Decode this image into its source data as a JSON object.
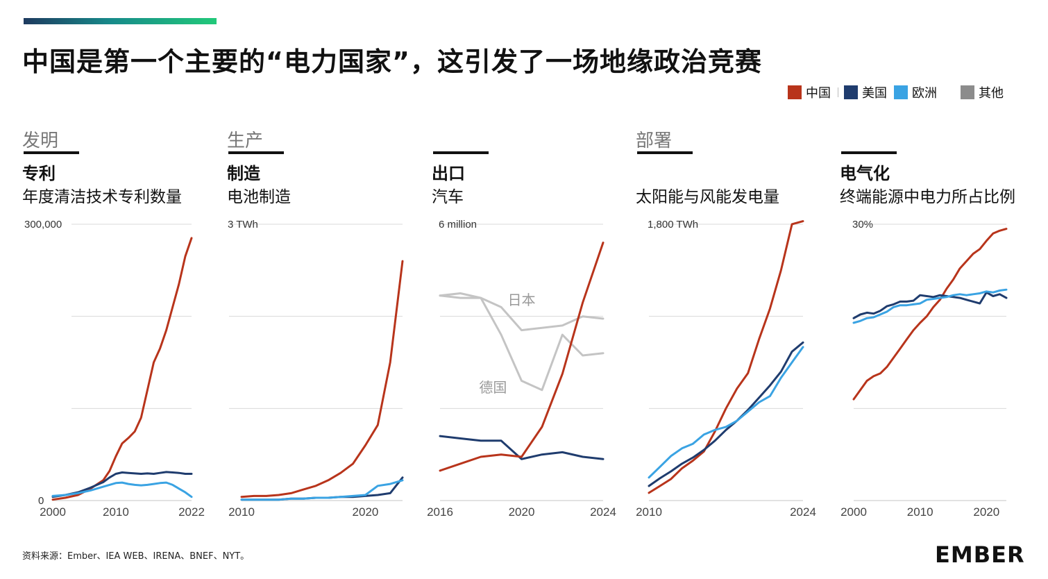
{
  "title": "中国是第一个主要的“电力国家”，这引发了一场地缘政治竞赛",
  "legend": [
    {
      "label": "中国",
      "color": "#b8341b"
    },
    {
      "label": "美国",
      "color": "#1f3c6e"
    },
    {
      "label": "欧洲",
      "color": "#3aa3e3"
    },
    {
      "label": "其他",
      "color": "#8c8c8c"
    }
  ],
  "colors": {
    "china": "#b8341b",
    "us": "#1f3c6e",
    "europe": "#3aa3e3",
    "other": "#c4c4c4",
    "grid": "#d9d9d9"
  },
  "panels": [
    {
      "category": "发明",
      "subtitle": "专利",
      "description": "年度清洁技术专利数量"
    },
    {
      "category": "生产",
      "subtitle": "制造",
      "description": "电池制造"
    },
    {
      "category": "",
      "subtitle": "出口",
      "description": "汽车"
    },
    {
      "category": "部署",
      "subtitle": "",
      "description": "太阳能与风能发电量"
    },
    {
      "category": "",
      "subtitle": "电气化",
      "description": "终端能源中电力所占比例"
    }
  ],
  "chart_data": [
    {
      "type": "line",
      "title": "年度清洁技术专利数量",
      "ylim": [
        0,
        300000
      ],
      "xlim": [
        2000,
        2022
      ],
      "top_label": "300,000",
      "zero_label": "0",
      "x_tick_labels": [
        {
          "value": 2000,
          "label": "2000"
        },
        {
          "value": 2010,
          "label": "2010"
        },
        {
          "value": 2022,
          "label": "2022"
        }
      ],
      "series": [
        {
          "name": "中国",
          "key": "china",
          "x": [
            2000,
            2002,
            2004,
            2006,
            2008,
            2009,
            2010,
            2011,
            2012,
            2013,
            2014,
            2015,
            2016,
            2017,
            2018,
            2019,
            2020,
            2021,
            2022
          ],
          "y": [
            1000,
            3000,
            6000,
            13000,
            22000,
            32000,
            48000,
            62000,
            68000,
            75000,
            90000,
            120000,
            150000,
            165000,
            185000,
            210000,
            235000,
            265000,
            285000
          ]
        },
        {
          "name": "美国",
          "key": "us",
          "x": [
            2000,
            2002,
            2004,
            2006,
            2008,
            2009,
            2010,
            2011,
            2012,
            2013,
            2014,
            2015,
            2016,
            2017,
            2018,
            2019,
            2020,
            2021,
            2022
          ],
          "y": [
            4000,
            6000,
            9000,
            14000,
            20000,
            25000,
            29000,
            30500,
            30000,
            29500,
            29000,
            29500,
            29000,
            30000,
            31000,
            30500,
            30000,
            29000,
            29000
          ]
        },
        {
          "name": "欧洲",
          "key": "europe",
          "x": [
            2000,
            2002,
            2004,
            2006,
            2008,
            2009,
            2010,
            2011,
            2012,
            2013,
            2014,
            2015,
            2016,
            2017,
            2018,
            2019,
            2020,
            2021,
            2022
          ],
          "y": [
            5000,
            6000,
            8000,
            11000,
            15000,
            17000,
            19000,
            19500,
            18000,
            17000,
            16500,
            17000,
            18000,
            19000,
            19500,
            17000,
            13000,
            9000,
            4000
          ]
        }
      ]
    },
    {
      "type": "line",
      "title": "电池制造",
      "ylim": [
        0,
        3
      ],
      "xlim": [
        2010,
        2023
      ],
      "top_label": "3 TWh",
      "x_tick_labels": [
        {
          "value": 2010,
          "label": "2010"
        },
        {
          "value": 2020,
          "label": "2020"
        }
      ],
      "series": [
        {
          "name": "中国",
          "key": "china",
          "x": [
            2010,
            2011,
            2012,
            2013,
            2014,
            2015,
            2016,
            2017,
            2018,
            2019,
            2020,
            2021,
            2022,
            2023
          ],
          "y": [
            0.04,
            0.05,
            0.05,
            0.06,
            0.08,
            0.12,
            0.16,
            0.22,
            0.3,
            0.4,
            0.6,
            0.82,
            1.5,
            2.6
          ]
        },
        {
          "name": "美国",
          "key": "us",
          "x": [
            2010,
            2011,
            2012,
            2013,
            2014,
            2015,
            2016,
            2017,
            2018,
            2019,
            2020,
            2021,
            2022,
            2023
          ],
          "y": [
            0.01,
            0.01,
            0.01,
            0.01,
            0.02,
            0.02,
            0.03,
            0.03,
            0.04,
            0.04,
            0.05,
            0.06,
            0.08,
            0.25
          ]
        },
        {
          "name": "欧洲",
          "key": "europe",
          "x": [
            2010,
            2011,
            2012,
            2013,
            2014,
            2015,
            2016,
            2017,
            2018,
            2019,
            2020,
            2021,
            2022,
            2023
          ],
          "y": [
            0.01,
            0.01,
            0.01,
            0.01,
            0.02,
            0.02,
            0.03,
            0.03,
            0.04,
            0.05,
            0.06,
            0.16,
            0.18,
            0.22
          ]
        }
      ]
    },
    {
      "type": "line",
      "title": "汽车",
      "ylim": [
        0,
        6
      ],
      "xlim": [
        2016,
        2024
      ],
      "top_label": "6 million",
      "x_tick_labels": [
        {
          "value": 2016,
          "label": "2016"
        },
        {
          "value": 2020,
          "label": "2020"
        },
        {
          "value": 2024,
          "label": "2024"
        }
      ],
      "annotations": [
        {
          "text": "日本",
          "x": 2020,
          "y": 4.25
        },
        {
          "text": "德国",
          "x": 2018.6,
          "y": 2.35
        }
      ],
      "series": [
        {
          "name": "日本",
          "key": "other",
          "x": [
            2016,
            2017,
            2018,
            2019,
            2020,
            2021,
            2022,
            2023,
            2024
          ],
          "y": [
            4.45,
            4.5,
            4.4,
            4.2,
            3.7,
            3.75,
            3.8,
            4.0,
            3.95
          ]
        },
        {
          "name": "德国",
          "key": "other",
          "x": [
            2016,
            2017,
            2018,
            2019,
            2020,
            2021,
            2022,
            2023,
            2024
          ],
          "y": [
            4.45,
            4.4,
            4.4,
            3.6,
            2.6,
            2.4,
            3.6,
            3.15,
            3.2
          ]
        },
        {
          "name": "美国",
          "key": "us",
          "x": [
            2016,
            2017,
            2018,
            2019,
            2020,
            2021,
            2022,
            2023,
            2024
          ],
          "y": [
            1.4,
            1.35,
            1.3,
            1.3,
            0.9,
            1.0,
            1.05,
            0.95,
            0.9
          ]
        },
        {
          "name": "中国",
          "key": "china",
          "x": [
            2016,
            2017,
            2018,
            2019,
            2020,
            2021,
            2022,
            2023,
            2024
          ],
          "y": [
            0.65,
            0.8,
            0.95,
            1.0,
            0.95,
            1.6,
            2.75,
            4.3,
            5.6
          ]
        }
      ]
    },
    {
      "type": "line",
      "title": "太阳能与风能发电量",
      "ylim": [
        0,
        1800
      ],
      "xlim": [
        2010,
        2024
      ],
      "top_label": "1,800 TWh",
      "x_tick_labels": [
        {
          "value": 2010,
          "label": "2010"
        },
        {
          "value": 2024,
          "label": "2024"
        }
      ],
      "series": [
        {
          "name": "中国",
          "key": "china",
          "x": [
            2010,
            2011,
            2012,
            2013,
            2014,
            2015,
            2016,
            2017,
            2018,
            2019,
            2020,
            2021,
            2022,
            2023,
            2024
          ],
          "y": [
            50,
            95,
            140,
            210,
            260,
            320,
            450,
            600,
            730,
            830,
            1050,
            1250,
            1500,
            1800,
            1820
          ]
        },
        {
          "name": "美国",
          "key": "us",
          "x": [
            2010,
            2011,
            2012,
            2013,
            2014,
            2015,
            2016,
            2017,
            2018,
            2019,
            2020,
            2021,
            2022,
            2023,
            2024
          ],
          "y": [
            95,
            145,
            190,
            240,
            280,
            330,
            390,
            460,
            520,
            590,
            670,
            750,
            840,
            970,
            1030
          ]
        },
        {
          "name": "欧洲",
          "key": "europe",
          "x": [
            2010,
            2011,
            2012,
            2013,
            2014,
            2015,
            2016,
            2017,
            2018,
            2019,
            2020,
            2021,
            2022,
            2023,
            2024
          ],
          "y": [
            150,
            220,
            290,
            340,
            370,
            430,
            460,
            480,
            520,
            580,
            640,
            680,
            800,
            900,
            1000
          ]
        }
      ]
    },
    {
      "type": "line",
      "title": "终端能源中电力所占比例",
      "ylim": [
        0,
        30
      ],
      "xlim": [
        2000,
        2023
      ],
      "top_label": "30%",
      "x_tick_labels": [
        {
          "value": 2000,
          "label": "2000"
        },
        {
          "value": 2010,
          "label": "2010"
        },
        {
          "value": 2020,
          "label": "2020"
        }
      ],
      "series": [
        {
          "name": "中国",
          "key": "china",
          "x": [
            2000,
            2001,
            2002,
            2003,
            2004,
            2005,
            2006,
            2007,
            2008,
            2009,
            2010,
            2011,
            2012,
            2013,
            2014,
            2015,
            2016,
            2017,
            2018,
            2019,
            2020,
            2021,
            2022,
            2023
          ],
          "y": [
            11,
            12,
            13,
            13.5,
            13.8,
            14.5,
            15.5,
            16.5,
            17.5,
            18.5,
            19.3,
            20,
            21,
            21.8,
            23,
            24,
            25.2,
            26,
            26.8,
            27.3,
            28.2,
            29,
            29.3,
            29.5
          ]
        },
        {
          "name": "美国",
          "key": "us",
          "x": [
            2000,
            2001,
            2002,
            2003,
            2004,
            2005,
            2006,
            2007,
            2008,
            2009,
            2010,
            2011,
            2012,
            2013,
            2014,
            2015,
            2016,
            2017,
            2018,
            2019,
            2020,
            2021,
            2022,
            2023
          ],
          "y": [
            19.8,
            20.2,
            20.4,
            20.3,
            20.6,
            21.1,
            21.3,
            21.6,
            21.6,
            21.7,
            22.3,
            22.2,
            22.1,
            22.3,
            22.2,
            22.1,
            22.0,
            21.8,
            21.6,
            21.4,
            22.6,
            22.2,
            22.4,
            22.0
          ]
        },
        {
          "name": "欧洲",
          "key": "europe",
          "x": [
            2000,
            2001,
            2002,
            2003,
            2004,
            2005,
            2006,
            2007,
            2008,
            2009,
            2010,
            2011,
            2012,
            2013,
            2014,
            2015,
            2016,
            2017,
            2018,
            2019,
            2020,
            2021,
            2022,
            2023
          ],
          "y": [
            19.3,
            19.5,
            19.8,
            19.9,
            20.2,
            20.5,
            21,
            21.2,
            21.2,
            21.3,
            21.4,
            21.8,
            21.9,
            22.0,
            22.1,
            22.3,
            22.4,
            22.3,
            22.4,
            22.5,
            22.7,
            22.6,
            22.8,
            22.9
          ]
        }
      ]
    }
  ],
  "footer": {
    "source": "资料来源：Ember、IEA WEB、IRENA、BNEF、NYT。"
  },
  "logo": {
    "text": "EMBER"
  }
}
